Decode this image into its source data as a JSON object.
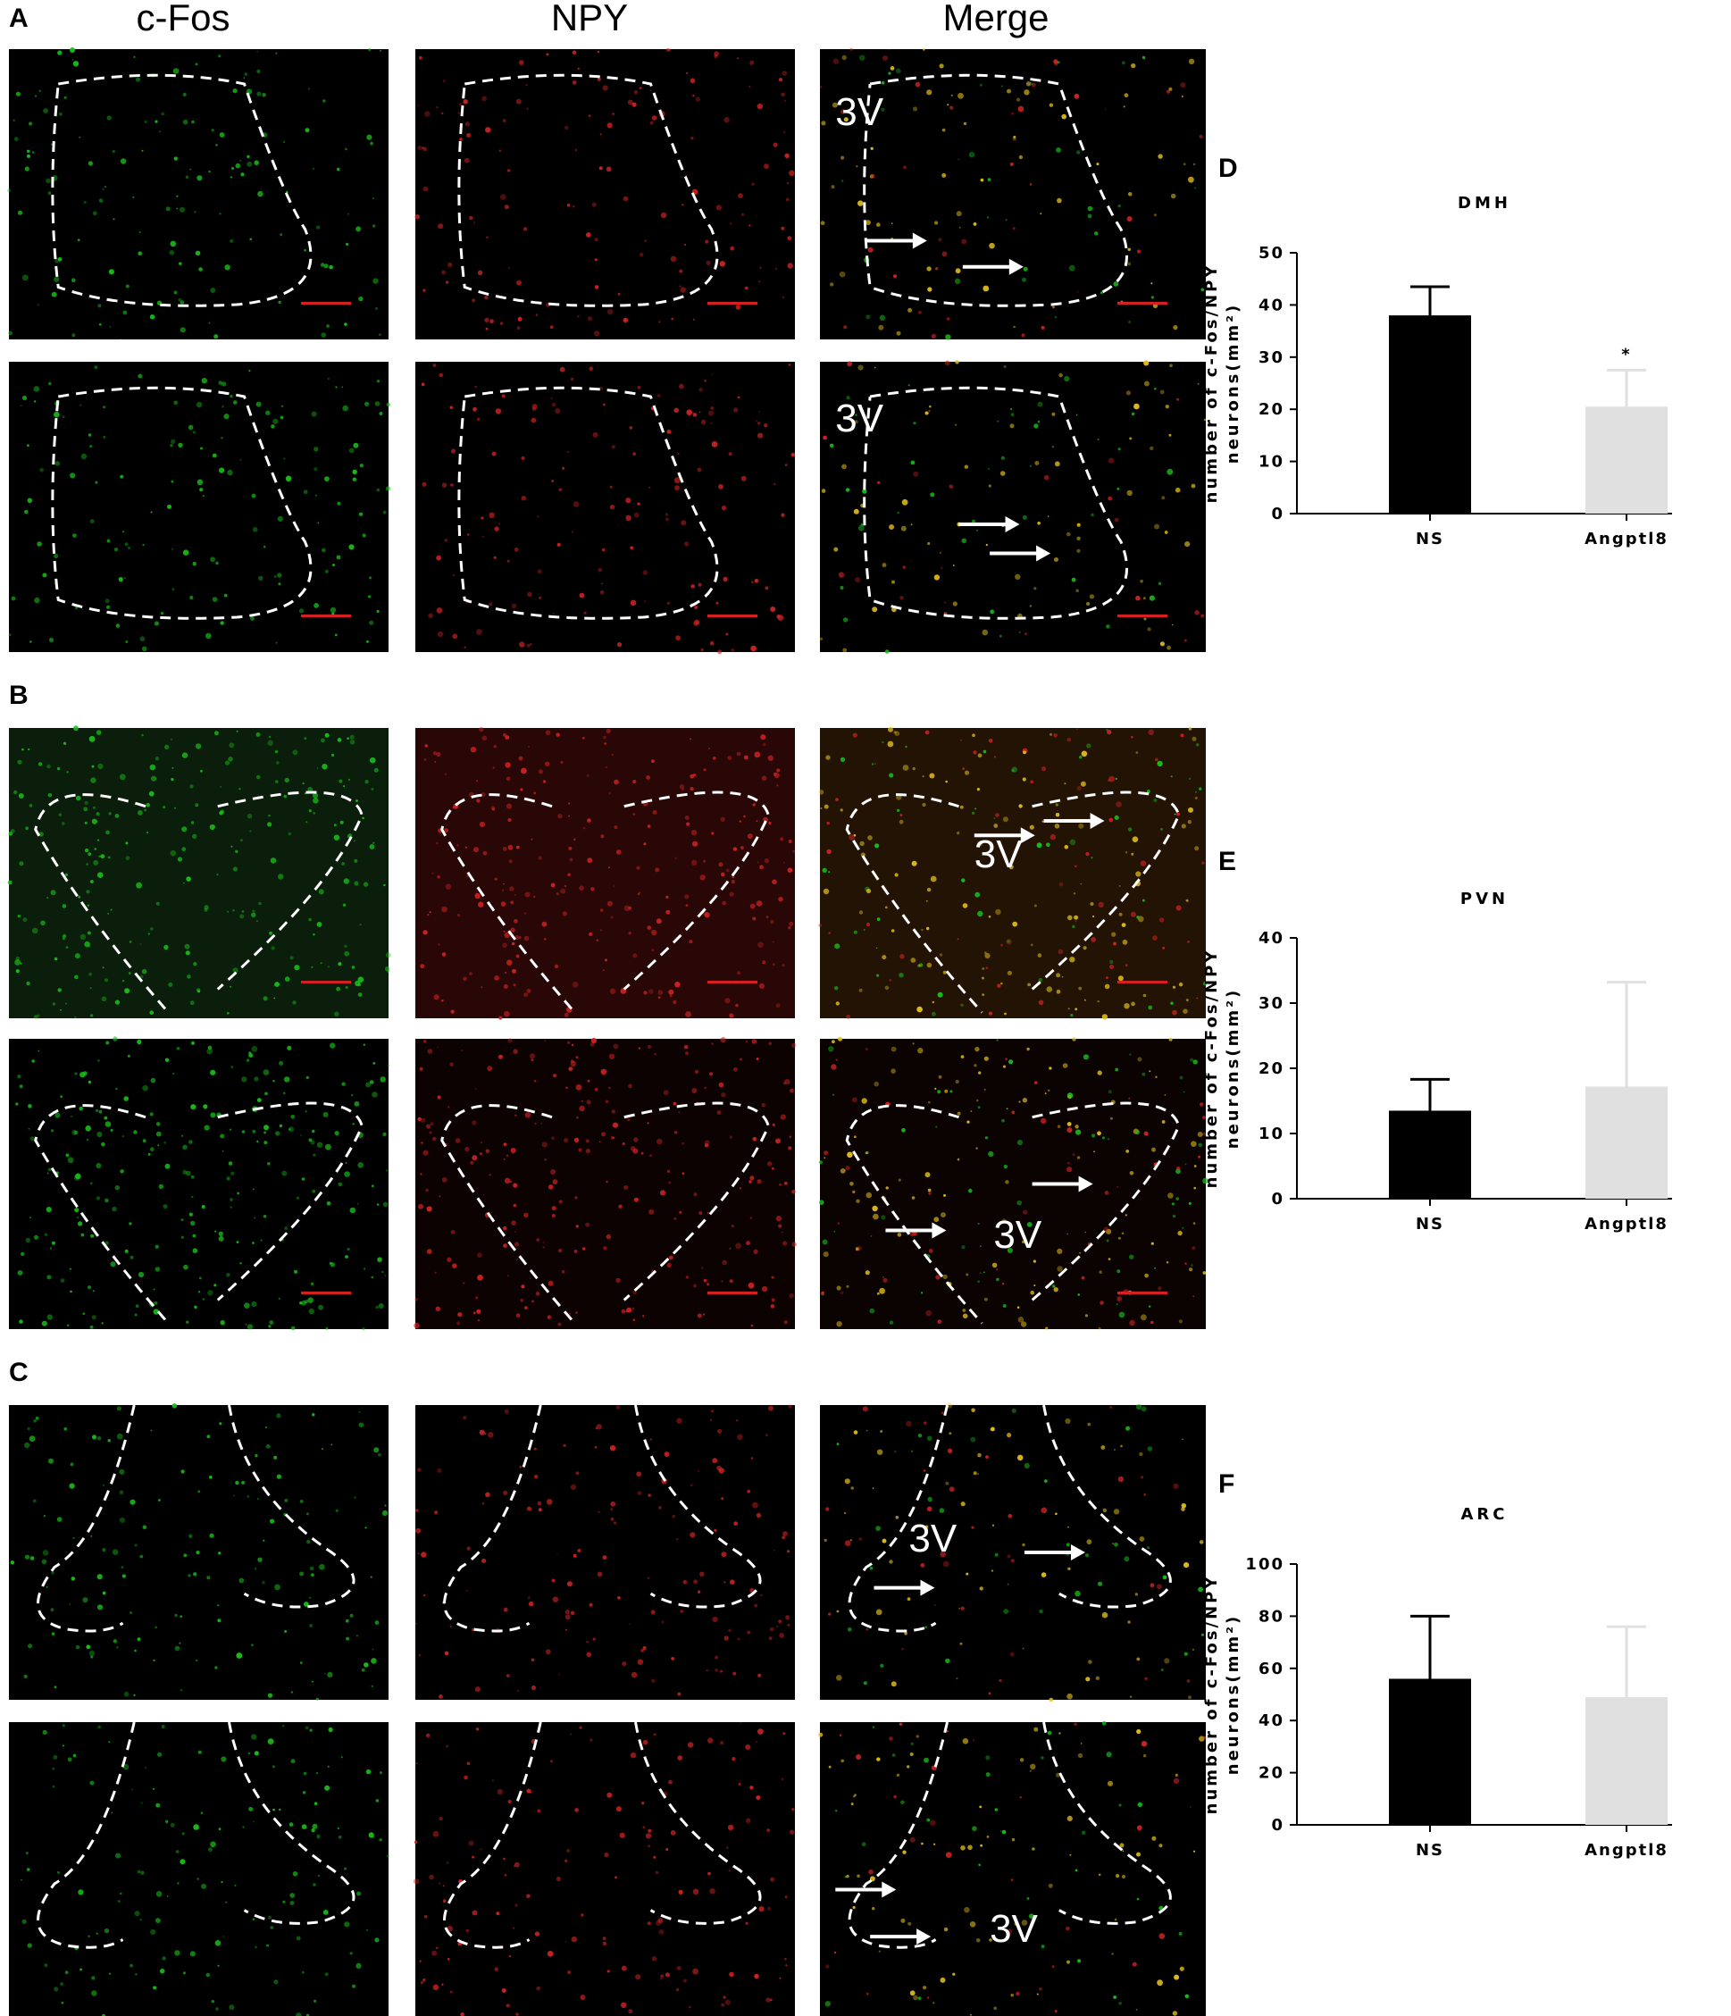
{
  "figure": {
    "panel_letters": [
      "A",
      "B",
      "C",
      "D",
      "E",
      "F"
    ],
    "column_headers": [
      "c-Fos",
      "NPY",
      "Merge"
    ],
    "region_marker": "3V",
    "channel_colors": {
      "cfos": "#19c419",
      "npy": "#d42323",
      "merge": "#e6c21c",
      "scalebar": "#d42020",
      "outline": "#ffffff",
      "arrow": "#ffffff"
    }
  },
  "chart_data": [
    {
      "type": "bar",
      "title": "DMH",
      "categories": [
        "NS",
        "Angptl8"
      ],
      "values": [
        38,
        20.5
      ],
      "errors": [
        5.5,
        7
      ],
      "ylabel": "number of c-Fos/NPY neurons(mm²)",
      "ylim": [
        0,
        50
      ],
      "yticks": [
        0,
        10,
        20,
        30,
        40,
        50
      ],
      "colors": [
        "#000000",
        "#e0e0e0"
      ],
      "significance": [
        "",
        "*"
      ]
    },
    {
      "type": "bar",
      "title": "PVN",
      "categories": [
        "NS",
        "Angptl8"
      ],
      "values": [
        13.5,
        17.2
      ],
      "errors": [
        4.8,
        16
      ],
      "ylabel": "number of c-Fos/NPY neurons(mm²)",
      "ylim": [
        0,
        40
      ],
      "yticks": [
        0,
        10,
        20,
        30,
        40
      ],
      "colors": [
        "#000000",
        "#e0e0e0"
      ],
      "significance": [
        "",
        ""
      ]
    },
    {
      "type": "bar",
      "title": "ARC",
      "categories": [
        "NS",
        "Angptl8"
      ],
      "values": [
        56,
        49
      ],
      "errors": [
        24,
        27
      ],
      "ylabel": "number of c-Fos/NPY neurons(mm²)",
      "ylim": [
        0,
        100
      ],
      "yticks": [
        0,
        20,
        40,
        60,
        80,
        100
      ],
      "colors": [
        "#000000",
        "#e0e0e0"
      ],
      "significance": [
        "",
        ""
      ]
    }
  ]
}
